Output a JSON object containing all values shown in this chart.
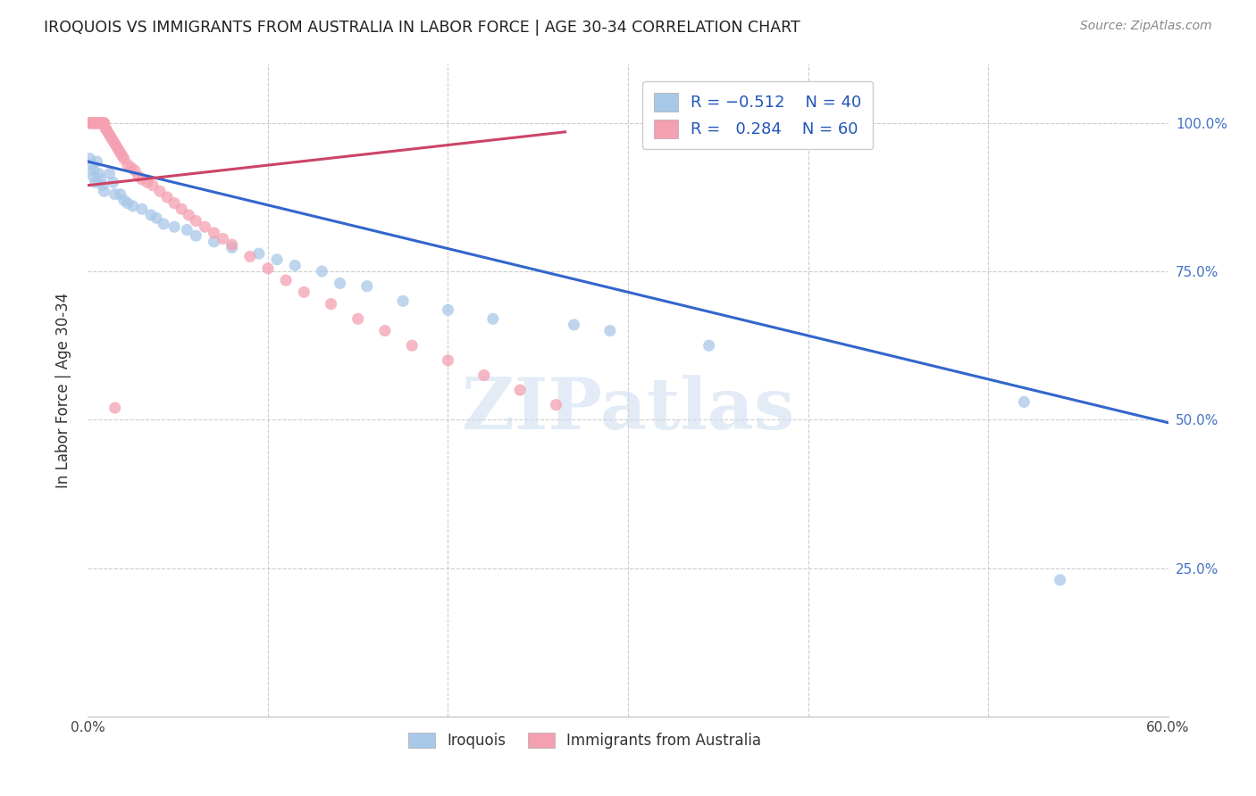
{
  "title": "IROQUOIS VS IMMIGRANTS FROM AUSTRALIA IN LABOR FORCE | AGE 30-34 CORRELATION CHART",
  "source": "Source: ZipAtlas.com",
  "ylabel": "In Labor Force | Age 30-34",
  "x_min": 0.0,
  "x_max": 0.6,
  "y_min": 0.0,
  "y_max": 1.1,
  "legend_r_blue": "-0.512",
  "legend_n_blue": "40",
  "legend_r_pink": "0.284",
  "legend_n_pink": "60",
  "blue_color": "#a8c8e8",
  "pink_color": "#f4a0b0",
  "line_blue_color": "#3366cc",
  "line_pink_color": "#cc4466",
  "blue_line_x": [
    0.0,
    0.6
  ],
  "blue_line_y": [
    0.935,
    0.495
  ],
  "pink_line_x": [
    0.0,
    0.265
  ],
  "pink_line_y": [
    0.895,
    0.985
  ],
  "blue_points_x": [
    0.001,
    0.002,
    0.003,
    0.003,
    0.004,
    0.005,
    0.006,
    0.007,
    0.008,
    0.009,
    0.012,
    0.014,
    0.015,
    0.018,
    0.02,
    0.022,
    0.025,
    0.03,
    0.035,
    0.038,
    0.042,
    0.048,
    0.055,
    0.06,
    0.07,
    0.08,
    0.095,
    0.105,
    0.115,
    0.13,
    0.14,
    0.155,
    0.175,
    0.2,
    0.225,
    0.27,
    0.29,
    0.345,
    0.52,
    0.54
  ],
  "blue_points_y": [
    0.94,
    0.93,
    0.92,
    0.91,
    0.9,
    0.935,
    0.915,
    0.905,
    0.895,
    0.885,
    0.915,
    0.9,
    0.88,
    0.88,
    0.87,
    0.865,
    0.86,
    0.855,
    0.845,
    0.84,
    0.83,
    0.825,
    0.82,
    0.81,
    0.8,
    0.79,
    0.78,
    0.77,
    0.76,
    0.75,
    0.73,
    0.725,
    0.7,
    0.685,
    0.67,
    0.66,
    0.65,
    0.625,
    0.53,
    0.23
  ],
  "pink_points_x": [
    0.001,
    0.001,
    0.002,
    0.002,
    0.003,
    0.003,
    0.004,
    0.004,
    0.005,
    0.005,
    0.006,
    0.006,
    0.007,
    0.007,
    0.008,
    0.008,
    0.009,
    0.009,
    0.01,
    0.01,
    0.011,
    0.012,
    0.013,
    0.014,
    0.015,
    0.016,
    0.017,
    0.018,
    0.019,
    0.02,
    0.022,
    0.024,
    0.026,
    0.028,
    0.03,
    0.033,
    0.036,
    0.04,
    0.044,
    0.048,
    0.052,
    0.056,
    0.06,
    0.065,
    0.07,
    0.075,
    0.08,
    0.09,
    0.1,
    0.11,
    0.12,
    0.135,
    0.15,
    0.165,
    0.18,
    0.2,
    0.22,
    0.24,
    0.26,
    0.015
  ],
  "pink_points_y": [
    1.0,
    1.0,
    1.0,
    1.0,
    1.0,
    1.0,
    1.0,
    1.0,
    1.0,
    1.0,
    1.0,
    1.0,
    1.0,
    1.0,
    1.0,
    1.0,
    1.0,
    1.0,
    0.99,
    0.99,
    0.985,
    0.98,
    0.975,
    0.97,
    0.965,
    0.96,
    0.955,
    0.95,
    0.945,
    0.94,
    0.93,
    0.925,
    0.92,
    0.91,
    0.905,
    0.9,
    0.895,
    0.885,
    0.875,
    0.865,
    0.855,
    0.845,
    0.835,
    0.825,
    0.815,
    0.805,
    0.795,
    0.775,
    0.755,
    0.735,
    0.715,
    0.695,
    0.67,
    0.65,
    0.625,
    0.6,
    0.575,
    0.55,
    0.525,
    0.52
  ]
}
